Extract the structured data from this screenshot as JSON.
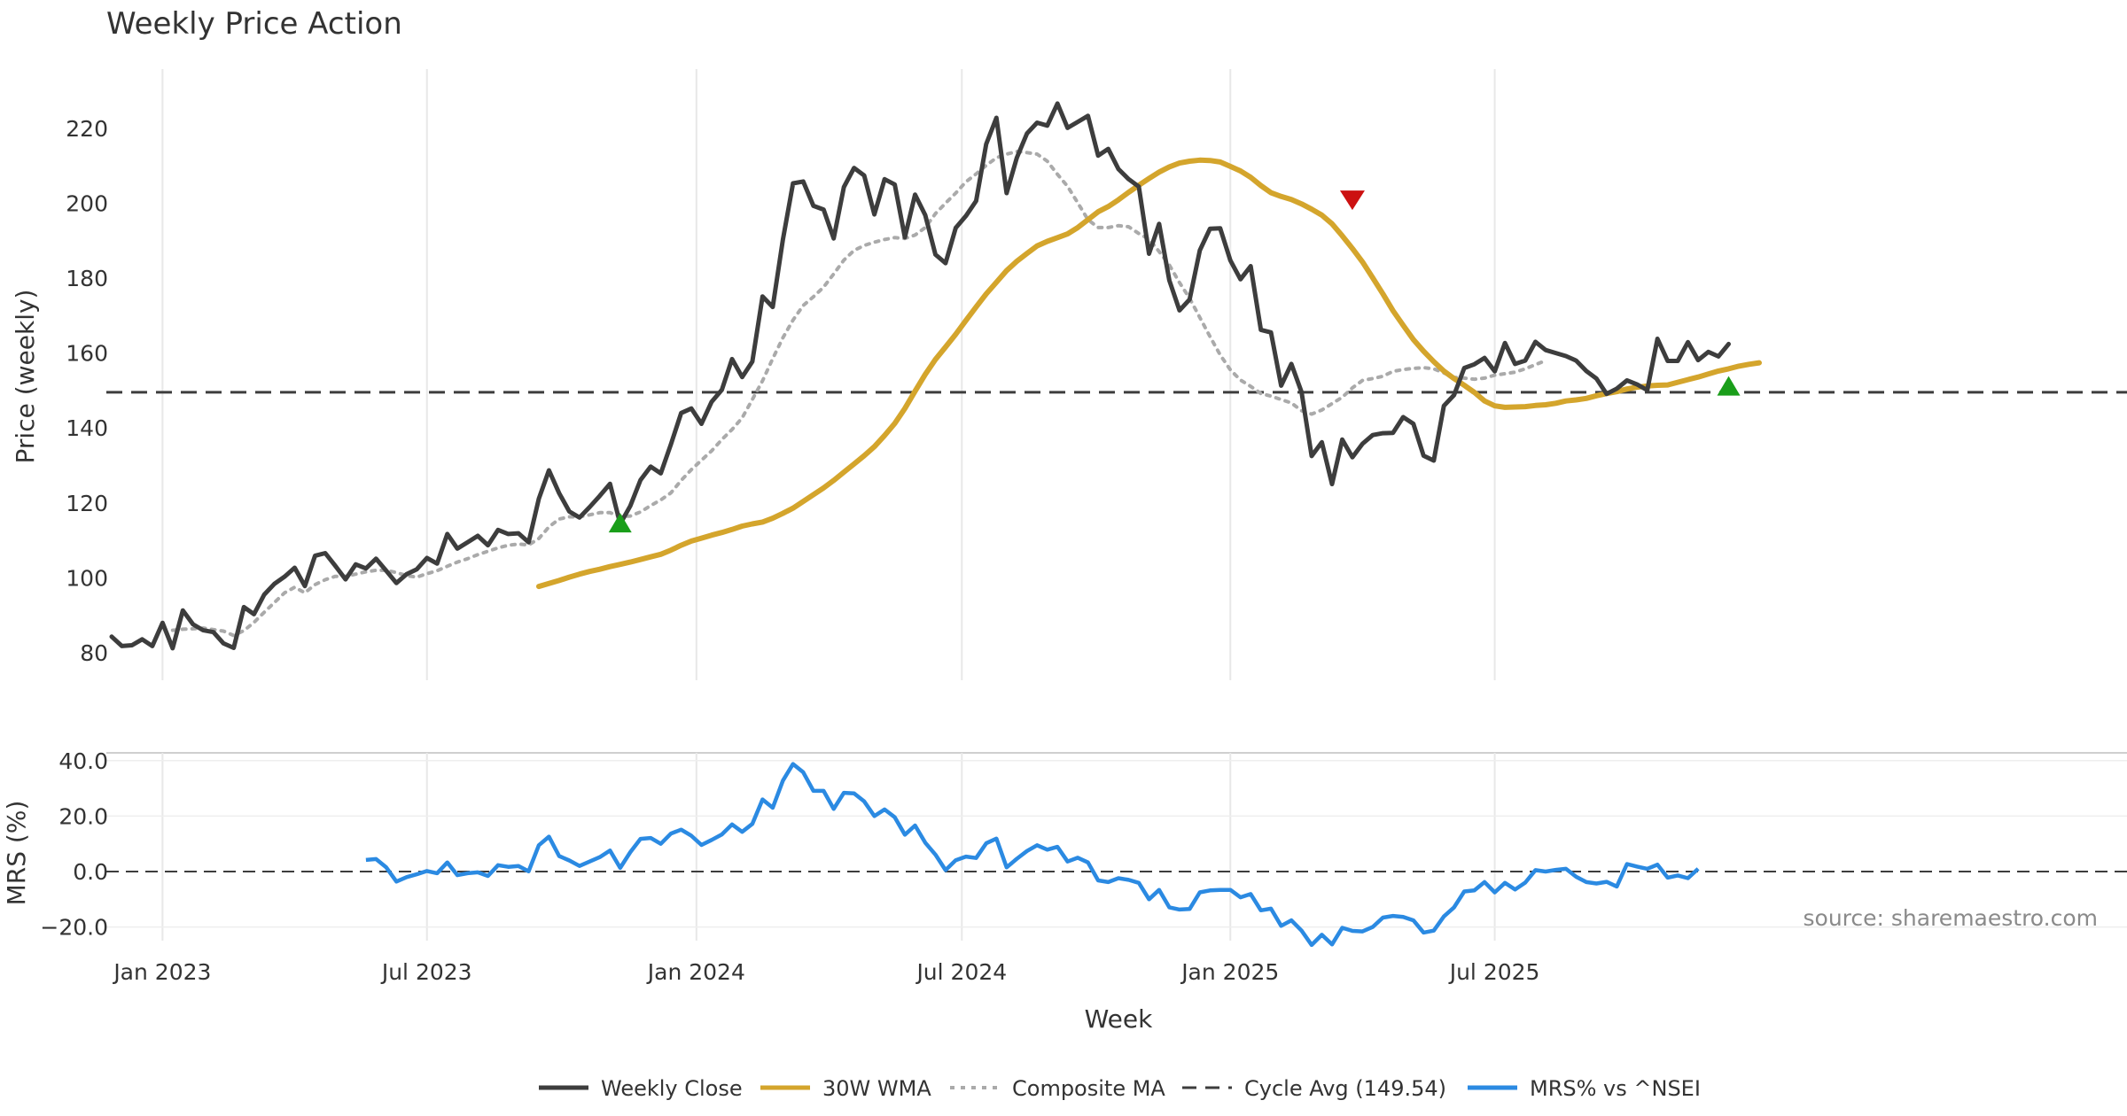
{
  "chart_data": [
    {
      "type": "line",
      "title": "Weekly Price Action",
      "ylabel": "Price (weekly)",
      "xlabel": "",
      "ylim": [
        75,
        240
      ],
      "yticks": [
        "80",
        "100",
        "120",
        "140",
        "160",
        "180",
        "200",
        "220"
      ],
      "start_date": "2022-11-28",
      "week_count": 196,
      "series": [
        {
          "name": "Weekly Close",
          "color": "#3d3d3d",
          "values": [
            84.3,
            81.8,
            82.0,
            83.6,
            81.8,
            88.0,
            81.2,
            91.3,
            87.6,
            86.0,
            85.5,
            82.5,
            81.3,
            92.2,
            90.3,
            95.5,
            98.4,
            100.3,
            102.7,
            97.8,
            105.9,
            106.6,
            103.2,
            99.6,
            103.6,
            102.5,
            105.1,
            101.9,
            98.6,
            101.0,
            102.3,
            105.3,
            103.8,
            111.7,
            107.8,
            109.5,
            111.2,
            108.7,
            112.8,
            111.7,
            111.9,
            109.5,
            121.1,
            128.7,
            122.6,
            117.7,
            116.1,
            118.9,
            121.9,
            125.1,
            114.4,
            119.2,
            126.1,
            129.7,
            127.9,
            135.7,
            144.0,
            145.2,
            141.1,
            147.0,
            150.2,
            158.4,
            153.6,
            157.7,
            175.1,
            172.3,
            190.3,
            205.3,
            205.8,
            199.3,
            198.3,
            190.6,
            204.3,
            209.4,
            207.4,
            197.0,
            206.4,
            205.0,
            190.9,
            202.3,
            196.8,
            186.3,
            184.0,
            193.4,
            196.6,
            200.6,
            215.8,
            222.8,
            202.7,
            212.1,
            218.6,
            221.5,
            220.7,
            226.6,
            220.1,
            221.7,
            223.3,
            212.7,
            214.5,
            209.1,
            206.4,
            204.4,
            186.5,
            194.5,
            179.4,
            171.4,
            174.3,
            187.4,
            193.2,
            193.3,
            184.7,
            179.7,
            183.2,
            166.2,
            165.5,
            151.3,
            157.1,
            149.6,
            132.5,
            136.2,
            125.0,
            136.9,
            132.2,
            135.8,
            138.1,
            138.6,
            138.7,
            142.9,
            141.1,
            132.6,
            131.3,
            145.9,
            148.8,
            156.0,
            157.0,
            158.7,
            155.1,
            162.7,
            157.1,
            158.0,
            163.0,
            160.8,
            160.0,
            159.2,
            158.0,
            155.2,
            153.2,
            149.1,
            150.5,
            152.7,
            151.6,
            150.1,
            163.8,
            157.9,
            157.9,
            162.9,
            158.1,
            160.3,
            159.1,
            162.4
          ],
          "offset": 0
        },
        {
          "name": "30W WMA",
          "color": "#d4a52c",
          "values": [
            97.7,
            98.5,
            99.3,
            100.2,
            101.0,
            101.7,
            102.3,
            103.0,
            103.6,
            104.2,
            104.9,
            105.6,
            106.3,
            107.4,
            108.7,
            109.8,
            110.6,
            111.4,
            112.1,
            112.9,
            113.8,
            114.4,
            114.9,
            115.9,
            117.2,
            118.6,
            120.4,
            122.2,
            124.0,
            126.0,
            128.2,
            130.4,
            132.6,
            135.0,
            138.0,
            141.2,
            145.2,
            149.8,
            154.3,
            158.3,
            161.6,
            165.0,
            168.7,
            172.3,
            175.8,
            178.9,
            182.0,
            184.5,
            186.6,
            188.6,
            189.8,
            190.8,
            191.8,
            193.5,
            195.6,
            197.7,
            199.1,
            200.9,
            202.9,
            204.8,
            206.6,
            208.3,
            209.7,
            210.7,
            211.2,
            211.5,
            211.4,
            211.0,
            209.8,
            208.6,
            206.9,
            204.7,
            202.8,
            201.8,
            201.0,
            199.8,
            198.4,
            196.8,
            194.5,
            191.3,
            187.9,
            184.3,
            180.1,
            175.8,
            171.3,
            167.4,
            163.6,
            160.5,
            157.7,
            155.2,
            153.2,
            151.4,
            149.5,
            147.2,
            145.9,
            145.5,
            145.6,
            145.7,
            146.0,
            146.2,
            146.6,
            147.2,
            147.5,
            147.9,
            148.6,
            149.2,
            149.7,
            150.4,
            150.9,
            151.2,
            151.4,
            151.5,
            152.2,
            152.9,
            153.6,
            154.4,
            155.2,
            155.8,
            156.5,
            157.0,
            157.4
          ],
          "offset": 42
        },
        {
          "name": "Composite MA",
          "color": "#aaaaaa",
          "values": [
            86.0,
            86.3,
            86.4,
            86.6,
            86.2,
            85.8,
            84.6,
            85.9,
            88.1,
            90.8,
            93.4,
            96.0,
            97.5,
            96.0,
            98.2,
            99.5,
            100.4,
            100.4,
            101.0,
            101.6,
            102.0,
            102.0,
            101.4,
            100.6,
            100.2,
            101.1,
            101.9,
            103.1,
            104.2,
            105.1,
            106.2,
            107.1,
            108.0,
            108.7,
            109.0,
            108.8,
            110.5,
            113.6,
            115.7,
            116.3,
            116.3,
            116.8,
            117.4,
            117.4,
            116.4,
            116.5,
            117.6,
            119.3,
            120.8,
            122.7,
            126.0,
            128.9,
            131.4,
            133.9,
            136.9,
            139.6,
            142.7,
            147.6,
            152.6,
            158.5,
            164.1,
            168.8,
            172.7,
            175.0,
            177.6,
            181.1,
            184.8,
            187.4,
            188.7,
            189.6,
            190.3,
            190.8,
            190.6,
            191.5,
            193.5,
            197.2,
            200.0,
            202.7,
            205.7,
            207.8,
            210.1,
            212.1,
            213.1,
            213.8,
            213.5,
            213.1,
            211.2,
            207.7,
            204.5,
            200.1,
            195.6,
            193.5,
            193.5,
            194.0,
            193.7,
            191.9,
            190.4,
            187.1,
            183.5,
            178.8,
            174.6,
            169.5,
            164.4,
            159.5,
            155.5,
            152.8,
            151.1,
            149.2,
            148.5,
            147.6,
            146.7,
            144.6,
            143.7,
            144.8,
            146.5,
            148.2,
            150.7,
            152.7,
            153.2,
            153.8,
            155.1,
            155.6,
            155.9,
            156.1,
            155.8,
            154.7,
            153.5,
            153.3,
            153.0,
            153.3,
            154.1,
            154.5,
            154.9,
            155.8,
            156.9,
            158.0
          ],
          "offset": 6
        }
      ],
      "reference_line": {
        "name": "Cycle Avg (149.54)",
        "value": 149.54,
        "color": "#3d3d3d"
      },
      "signals": [
        {
          "kind": "buy",
          "week": 50,
          "value": 114.5,
          "color": "#1a9e1a"
        },
        {
          "kind": "sell",
          "week": 122,
          "value": 201.0,
          "color": "#cc1111"
        },
        {
          "kind": "buy",
          "week": 159,
          "value": 151.0,
          "color": "#1a9e1a"
        }
      ]
    },
    {
      "type": "line",
      "ylabel": "MRS (%)",
      "xlabel": "Week",
      "ylim": [
        -30,
        44
      ],
      "yticks": [
        "40.0",
        "20.0",
        "0.0",
        "−20.0"
      ],
      "xticks": [
        {
          "label": "Jan 2023",
          "week": 5
        },
        {
          "label": "Jul 2023",
          "week": 31
        },
        {
          "label": "Jan 2024",
          "week": 57.5
        },
        {
          "label": "Jul 2024",
          "week": 83.6
        },
        {
          "label": "Jan 2025",
          "week": 110
        },
        {
          "label": "Jul 2025",
          "week": 136
        }
      ],
      "series": [
        {
          "name": "MRS% vs ^NSEI",
          "color": "#2b8ae2",
          "offset": 25,
          "values": [
            4.2,
            4.5,
            1.5,
            -3.6,
            -2.0,
            -1.0,
            0.2,
            -0.6,
            3.3,
            -1.3,
            -0.6,
            -0.3,
            -1.6,
            2.3,
            1.7,
            2.0,
            0.1,
            9.5,
            12.6,
            5.6,
            4.0,
            2.0,
            3.6,
            5.2,
            7.6,
            1.3,
            7.0,
            11.8,
            12.1,
            10.0,
            13.7,
            15.1,
            12.9,
            9.6,
            11.4,
            13.4,
            17.0,
            14.3,
            17.2,
            26.0,
            23.0,
            32.8,
            38.8,
            35.8,
            29.1,
            29.1,
            22.6,
            28.4,
            28.2,
            25.3,
            20.0,
            22.4,
            19.6,
            13.3,
            16.6,
            10.4,
            6.1,
            0.5,
            4.1,
            5.4,
            4.9,
            10.2,
            11.9,
            1.5,
            4.6,
            7.4,
            9.5,
            7.9,
            8.9,
            3.6,
            5.0,
            3.3,
            -3.2,
            -3.8,
            -2.4,
            -3.0,
            -4.1,
            -10.0,
            -6.6,
            -12.9,
            -13.7,
            -13.5,
            -7.5,
            -6.8,
            -6.6,
            -6.6,
            -9.3,
            -8.1,
            -14.0,
            -13.4,
            -19.6,
            -17.6,
            -21.3,
            -26.5,
            -22.8,
            -26.3,
            -20.3,
            -21.4,
            -21.6,
            -20.0,
            -16.6,
            -16.0,
            -16.4,
            -17.6,
            -22.0,
            -21.3,
            -16.2,
            -12.9,
            -7.2,
            -6.8,
            -3.8,
            -7.5,
            -4.1,
            -6.5,
            -4.0,
            0.5,
            0.0,
            0.6,
            1.0,
            -1.9,
            -3.8,
            -4.3,
            -3.7,
            -5.4,
            2.7,
            1.8,
            1.0,
            2.5,
            -2.2,
            -1.4,
            -2.4,
            1.0
          ]
        }
      ],
      "reference_line": {
        "value": 0,
        "color": "#3d3d3d"
      },
      "source": "source: sharemaestro.com"
    }
  ],
  "legend": [
    {
      "label": "Weekly Close",
      "style": "solid",
      "color": "#3d3d3d"
    },
    {
      "label": "30W WMA",
      "style": "solid",
      "color": "#d4a52c"
    },
    {
      "label": "Composite MA",
      "style": "dotted",
      "color": "#aaaaaa"
    },
    {
      "label": "Cycle Avg (149.54)",
      "style": "dashed",
      "color": "#3d3d3d"
    },
    {
      "label": "MRS% vs ^NSEI",
      "style": "solid",
      "color": "#2b8ae2"
    }
  ]
}
